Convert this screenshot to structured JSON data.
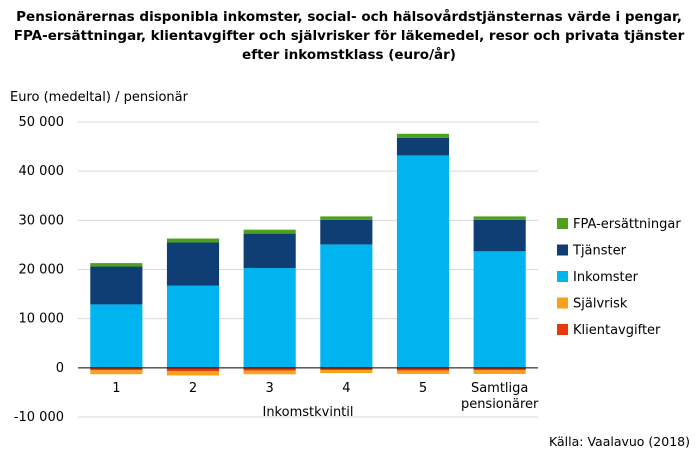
{
  "chart_data": {
    "type": "bar",
    "stacked": true,
    "title_lines": [
      "Pensionärernas disponibla inkomster, social- och hälsovårdstjänsternas värde i pengar,",
      "FPA-ersättningar, klientavgifter och självrisker för läkemedel, resor och privata tjänster",
      "efter inkomstklass (euro/år)"
    ],
    "ylabel": "Euro (medeltal) / pensionär",
    "xlabel": "Inkomstkvintil",
    "categories": [
      "1",
      "2",
      "3",
      "4",
      "5",
      "Samtliga pensionärer"
    ],
    "ylim": [
      -10000,
      50000
    ],
    "yticks": [
      -10000,
      0,
      10000,
      20000,
      30000,
      40000,
      50000
    ],
    "ytick_labels": [
      "-10 000",
      "0",
      "10 000",
      "20 000",
      "30 000",
      "40 000",
      "50 000"
    ],
    "grid": true,
    "legend_position": "right",
    "series": [
      {
        "name": "Klientavgifter",
        "color": "#e8380d",
        "values": [
          -500,
          -650,
          -550,
          -450,
          -550,
          -500
        ]
      },
      {
        "name": "Självrisk",
        "color": "#f7a21b",
        "values": [
          -800,
          -900,
          -750,
          -600,
          -700,
          -750
        ]
      },
      {
        "name": "Inkomster",
        "color": "#00b4f0",
        "values": [
          12900,
          16700,
          20300,
          25100,
          43200,
          23700
        ]
      },
      {
        "name": "Tjänster",
        "color": "#0e3e73",
        "values": [
          7700,
          8800,
          7000,
          5000,
          3600,
          6400
        ]
      },
      {
        "name": "FPA-ersättningar",
        "color": "#4ca21f",
        "values": [
          700,
          800,
          800,
          700,
          800,
          700
        ]
      }
    ],
    "legend_order": [
      "FPA-ersättningar",
      "Tjänster",
      "Inkomster",
      "Självrisk",
      "Klientavgifter"
    ]
  },
  "source": "Källa: Vaalavuo (2018)",
  "colors": {
    "gridline": "#d9d9d9",
    "axis": "#000000"
  }
}
